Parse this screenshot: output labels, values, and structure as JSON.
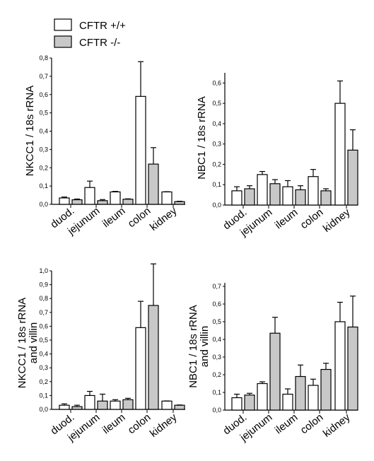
{
  "legend": {
    "items": [
      {
        "label": "CFTR +/+",
        "color": "#ffffff"
      },
      {
        "label": "CFTR -/-",
        "color": "#c8c8c8"
      }
    ]
  },
  "chart_data": [
    {
      "type": "bar",
      "ylabel": "NKCC1 / 18s rRNA",
      "ylim": [
        0,
        0.8
      ],
      "yticks": [
        "0,0",
        "0,1",
        "0,2",
        "0,3",
        "0,4",
        "0,5",
        "0,6",
        "0,7",
        "0,8"
      ],
      "categories": [
        "duod.",
        "jejunum",
        "ileum",
        "colon",
        "kidney"
      ],
      "series": [
        {
          "name": "CFTR +/+",
          "values": [
            0.035,
            0.092,
            0.068,
            0.59,
            0.068
          ],
          "errors": [
            0.005,
            0.035,
            0.003,
            0.19,
            0.001
          ]
        },
        {
          "name": "CFTR -/-",
          "values": [
            0.025,
            0.02,
            0.028,
            0.22,
            0.015
          ],
          "errors": [
            0.004,
            0.006,
            0.002,
            0.09,
            0.002
          ]
        }
      ]
    },
    {
      "type": "bar",
      "ylabel": "NBC1 / 18s rRNA",
      "ylim": [
        0,
        0.65
      ],
      "yticks": [
        "0,0",
        "0,1",
        "0,2",
        "0,3",
        "0,4",
        "0,5",
        "0,6"
      ],
      "categories": [
        "duod.",
        "jejunum",
        "ileum",
        "colon",
        "kidney"
      ],
      "series": [
        {
          "name": "CFTR +/+",
          "values": [
            0.07,
            0.15,
            0.09,
            0.14,
            0.5
          ],
          "errors": [
            0.02,
            0.015,
            0.03,
            0.035,
            0.11
          ]
        },
        {
          "name": "CFTR -/-",
          "values": [
            0.08,
            0.105,
            0.075,
            0.07,
            0.27
          ],
          "errors": [
            0.015,
            0.02,
            0.02,
            0.01,
            0.1
          ]
        }
      ]
    },
    {
      "type": "bar",
      "ylabel": [
        "NKCC1 / 18s rRNA",
        "and villin"
      ],
      "ylim": [
        0,
        1.0
      ],
      "yticks": [
        "0,0",
        "0,1",
        "0,2",
        "0,3",
        "0,4",
        "0,5",
        "0,6",
        "0,7",
        "0,8",
        "0,9",
        "1,0"
      ],
      "categories": [
        "duod.",
        "jejunum",
        "ileum",
        "colon",
        "kidney"
      ],
      "series": [
        {
          "name": "CFTR +/+",
          "values": [
            0.03,
            0.1,
            0.06,
            0.59,
            0.06
          ],
          "errors": [
            0.01,
            0.03,
            0.01,
            0.19,
            0.001
          ]
        },
        {
          "name": "CFTR -/-",
          "values": [
            0.02,
            0.06,
            0.07,
            0.75,
            0.03
          ],
          "errors": [
            0.01,
            0.05,
            0.01,
            0.3,
            0.002
          ]
        }
      ]
    },
    {
      "type": "bar",
      "ylabel": [
        "NBC1 / 18s rRNA",
        "and villin"
      ],
      "ylim": [
        0,
        0.72
      ],
      "yticks": [
        "0,0",
        "0,1",
        "0,2",
        "0,3",
        "0,4",
        "0,5",
        "0,6",
        "0,7"
      ],
      "categories": [
        "duod.",
        "jejunum",
        "ileum",
        "colon",
        "kidney"
      ],
      "series": [
        {
          "name": "CFTR +/+",
          "values": [
            0.07,
            0.15,
            0.09,
            0.14,
            0.5
          ],
          "errors": [
            0.02,
            0.01,
            0.03,
            0.035,
            0.11
          ]
        },
        {
          "name": "CFTR -/-",
          "values": [
            0.085,
            0.435,
            0.19,
            0.23,
            0.47
          ],
          "errors": [
            0.01,
            0.09,
            0.065,
            0.035,
            0.175
          ]
        }
      ]
    }
  ]
}
